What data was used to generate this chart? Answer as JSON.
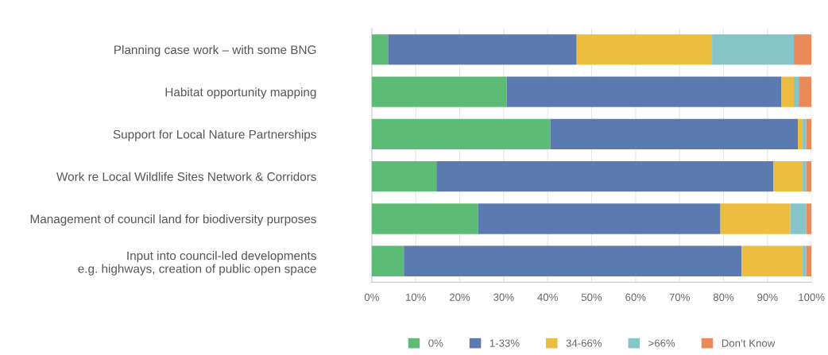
{
  "chart_data": {
    "type": "bar",
    "orientation": "horizontal",
    "stacked": true,
    "categories": [
      "Planning case work – with some BNG",
      "Habitat opportunity mapping",
      "Support for Local Nature Partnerships",
      "Work re Local Wildlife Sites Network & Corridors",
      "Management of council land for biodiversity purposes",
      "Input into council-led developments\ne.g. highways, creation of public open space"
    ],
    "series": [
      {
        "name": "0%",
        "color": "#5cbb74",
        "values": [
          3.7,
          30.7,
          40.6,
          14.7,
          24.2,
          7.3
        ]
      },
      {
        "name": "1-33%",
        "color": "#5b7bb0",
        "values": [
          42.9,
          62.5,
          56.3,
          76.6,
          55.1,
          76.8
        ]
      },
      {
        "name": "34-66%",
        "color": "#edbd40",
        "values": [
          30.8,
          2.8,
          1.1,
          6.7,
          15.9,
          13.9
        ]
      },
      {
        "name": ">66%",
        "color": "#85c5ca",
        "values": [
          18.6,
          1.1,
          0.8,
          0.8,
          3.6,
          0.8
        ]
      },
      {
        "name": "Don’t Know",
        "color": "#ea8a58",
        "values": [
          4.0,
          2.9,
          1.2,
          1.2,
          1.2,
          1.2
        ]
      }
    ],
    "xlim": [
      0,
      100
    ],
    "xticks": [
      {
        "value": 0,
        "label": "0%"
      },
      {
        "value": 10,
        "label": "10%"
      },
      {
        "value": 20,
        "label": "20%"
      },
      {
        "value": 30,
        "label": "30%"
      },
      {
        "value": 40,
        "label": "40%"
      },
      {
        "value": 50,
        "label": "50%"
      },
      {
        "value": 60,
        "label": "60%"
      },
      {
        "value": 70,
        "label": "70%"
      },
      {
        "value": 80,
        "label": "80%"
      },
      {
        "value": 90,
        "label": "90%"
      },
      {
        "value": 100,
        "label": "100%"
      }
    ],
    "grid": "x",
    "legend": "bottom"
  }
}
